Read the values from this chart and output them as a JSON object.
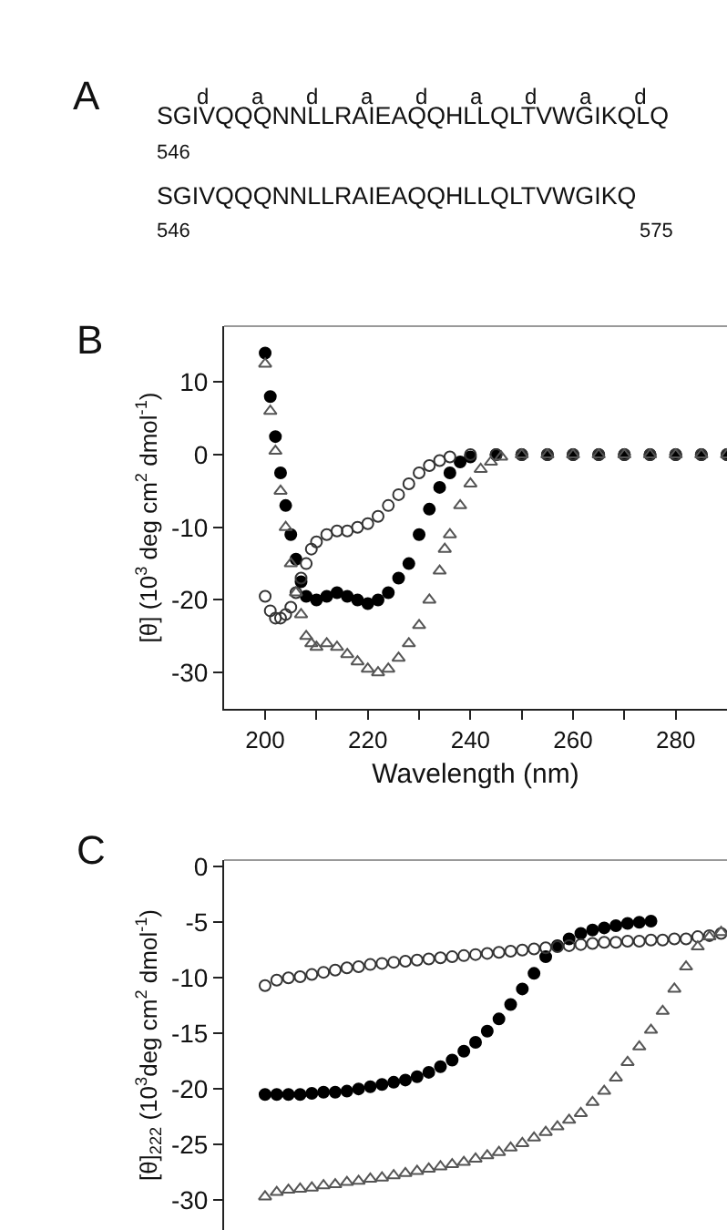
{
  "chart_data": [
    {
      "type": "other",
      "annotations": [
        "A",
        "d a d a d a d a d",
        "SGIVQQQNNLLRAIEAQQHLLQLTVWGIKQLQ",
        "546",
        "SGIVQQQNNLLRAIEAQQHLLQLTVWGIKQ",
        "546",
        "575"
      ]
    },
    {
      "type": "scatter",
      "annotations": [
        "B"
      ],
      "xlabel": "Wavelength (nm)",
      "ylabel": "[θ] (10$^{3}$ deg cm$^{2}$ dmol$^{-1}$)",
      "xlim": [
        192,
        290
      ],
      "xticks": [
        200,
        {
          "value": 210,
          "label": null
        },
        220,
        {
          "value": 230,
          "label": null
        },
        240,
        {
          "value": 250,
          "label": null
        },
        260,
        {
          "value": 270,
          "label": null
        },
        280
      ],
      "ylim": [
        -35,
        17.7
      ],
      "yticks": [
        10,
        0,
        -10,
        -20,
        -30
      ],
      "grid": false,
      "series": [
        {
          "color": "#000000",
          "marker": "circle",
          "x": [
            200,
            201,
            202,
            203,
            204,
            205,
            206,
            207,
            208,
            210,
            212,
            214,
            216,
            218,
            220,
            222,
            224,
            226,
            228,
            230,
            232,
            234,
            236,
            238,
            240,
            245,
            250,
            255,
            260,
            265,
            270,
            275,
            280,
            285,
            290
          ],
          "values": [
            14,
            8,
            2.5,
            -2.5,
            -7,
            -11,
            -14.4,
            -17.5,
            -19.5,
            -20,
            -19.5,
            -19,
            -19.5,
            -20,
            -20.5,
            -20,
            -19,
            -17,
            -15,
            -11,
            -7.5,
            -4.5,
            -2.5,
            -1,
            -0.3,
            0,
            0,
            0,
            0,
            0,
            0,
            0,
            0,
            0,
            0
          ]
        },
        {
          "color": "#333333",
          "marker": "circle",
          "x": [
            200,
            201,
            202,
            203,
            204,
            205,
            206,
            207,
            208,
            209,
            210,
            212,
            214,
            216,
            218,
            220,
            222,
            224,
            226,
            228,
            230,
            232,
            234,
            236,
            240,
            245,
            250,
            255,
            260,
            265,
            270,
            275,
            280,
            285,
            290
          ],
          "values": [
            -19.5,
            -21.5,
            -22.5,
            -22.5,
            -22,
            -21,
            -19,
            -17,
            -15,
            -13,
            -12,
            -11,
            -10.5,
            -10.5,
            -10,
            -9.5,
            -8.5,
            -7,
            -5.5,
            -4,
            -2.5,
            -1.5,
            -0.8,
            -0.3,
            0,
            0,
            0,
            0,
            0,
            0,
            0,
            0,
            0,
            0,
            0
          ]
        },
        {
          "color": "#555555",
          "marker": "triangle",
          "x": [
            200,
            201,
            202,
            203,
            204,
            205,
            206,
            207,
            208,
            209,
            210,
            212,
            214,
            216,
            218,
            220,
            222,
            224,
            226,
            228,
            230,
            232,
            234,
            235,
            236,
            238,
            240,
            242,
            244,
            246,
            250,
            255,
            260,
            265,
            270,
            275,
            280,
            285,
            290
          ],
          "values": [
            12.5,
            6,
            0.5,
            -5,
            -10,
            -15,
            -19,
            -22,
            -25,
            -26,
            -26.5,
            -26,
            -26.5,
            -27.5,
            -28.5,
            -29.5,
            -30,
            -29.5,
            -28,
            -26,
            -23.5,
            -20,
            -16,
            -13,
            -11,
            -7,
            -4,
            -2,
            -1,
            -0.3,
            0,
            0,
            0,
            0,
            0,
            0,
            0,
            0,
            0
          ]
        }
      ]
    },
    {
      "type": "scatter",
      "annotations": [
        "C"
      ],
      "ylabel": "[θ]$_{222}$ (10$^{3}$deg cm$^{2}$ dmol$^{-1}$)",
      "tick_labels": "y",
      "categories": [
        null,
        null,
        null,
        null,
        null,
        null,
        null,
        null,
        null,
        null,
        null,
        null,
        null,
        null,
        null,
        null,
        null,
        null,
        null,
        null,
        null,
        null,
        null,
        null,
        null,
        null,
        null,
        null,
        null,
        null,
        null,
        null,
        null,
        null,
        null,
        null,
        null,
        null,
        null,
        null,
        null,
        null,
        null
      ],
      "ylim": [
        -32.7,
        0.6
      ],
      "yticks": [
        0,
        -5,
        -10,
        -15,
        -20,
        -25,
        -30
      ],
      "grid": false,
      "series": [
        {
          "color": "#000000",
          "marker": "circle",
          "values": [
            null,
            null,
            null,
            -20.5,
            -20.5,
            -20.5,
            -20.5,
            -20.4,
            -20.3,
            -20.3,
            -20.2,
            -20,
            -19.8,
            -19.6,
            -19.4,
            -19.2,
            -18.9,
            -18.5,
            -18,
            -17.4,
            -16.6,
            -15.8,
            -14.8,
            -13.7,
            -12.4,
            -11,
            -9.6,
            -8.1,
            -7.1,
            -6.5,
            -6,
            -5.7,
            -5.5,
            -5.3,
            -5.1,
            -5,
            -4.9,
            null,
            null,
            null,
            null,
            null,
            null
          ]
        },
        {
          "color": "#333333",
          "marker": "circle",
          "values": [
            null,
            null,
            null,
            -10.7,
            -10.2,
            -10,
            -9.9,
            -9.7,
            -9.5,
            -9.3,
            -9.1,
            -9,
            -8.8,
            -8.7,
            -8.6,
            -8.5,
            -8.4,
            -8.3,
            -8.2,
            -8.1,
            -8,
            -7.9,
            -7.8,
            -7.7,
            -7.6,
            -7.5,
            -7.4,
            -7.3,
            -7.2,
            -7.1,
            -7,
            -6.9,
            -6.8,
            -6.8,
            -6.7,
            -6.7,
            -6.6,
            -6.6,
            -6.5,
            -6.5,
            -6.3,
            -6.2,
            -6
          ]
        },
        {
          "color": "#555555",
          "marker": "triangle",
          "values": [
            null,
            null,
            null,
            -29.7,
            -29.3,
            -29.1,
            -29,
            -28.9,
            -28.7,
            -28.6,
            -28.4,
            -28.3,
            -28.1,
            -28,
            -27.8,
            -27.6,
            -27.4,
            -27.2,
            -27,
            -26.8,
            -26.6,
            -26.3,
            -26,
            -25.7,
            -25.3,
            -24.9,
            -24.4,
            -23.9,
            -23.4,
            -22.8,
            -22.2,
            -21.2,
            -20.2,
            -19,
            -17.6,
            -16.2,
            -14.7,
            -13,
            -11,
            -9,
            -7.2,
            -6.3,
            -5.9
          ]
        }
      ]
    }
  ]
}
